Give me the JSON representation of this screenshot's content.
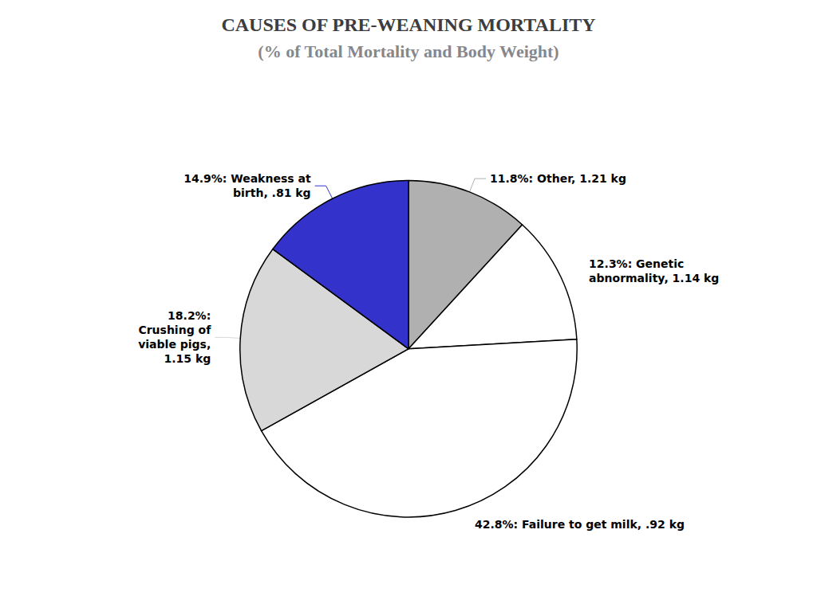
{
  "chart_data": {
    "type": "pie",
    "title": "CAUSES OF PRE-WEANING MORTALITY",
    "subtitle": "(% of Total Mortality and Body Weight)",
    "categories": [
      "11.8%: Other, 1.21 kg",
      "12.3%: Genetic\nabnormality, 1.14 kg",
      "42.8%: Failure to get milk, .92 kg",
      "18.2%:\nCrushing of\nviable pigs,\n1.15 kg",
      "14.9%: Weakness at\nbirth, .81 kg"
    ],
    "values": [
      11.8,
      12.3,
      42.8,
      18.2,
      14.9
    ],
    "colors": [
      "#b0b0b0",
      "#ffffff",
      "#ffffff",
      "#d8d8d8",
      "#3333cc"
    ]
  }
}
